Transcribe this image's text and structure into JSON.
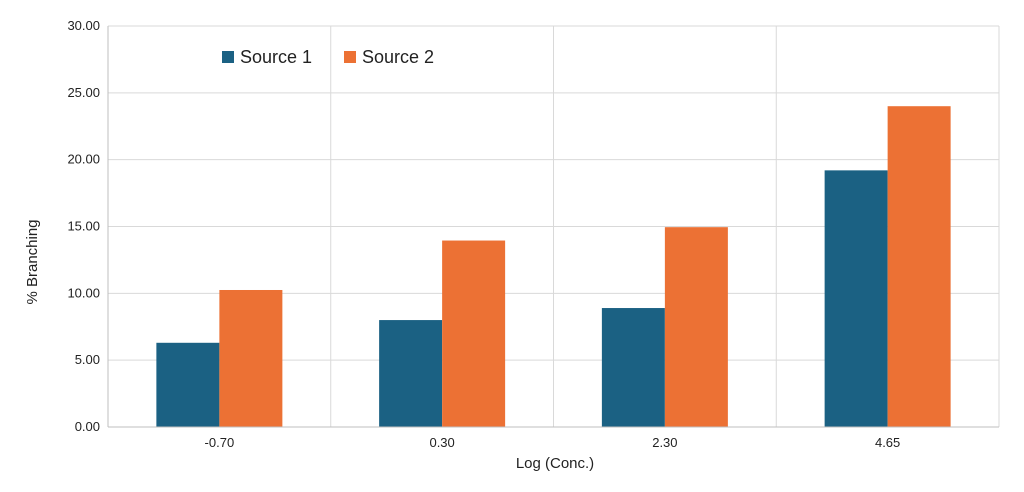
{
  "chart_data": {
    "type": "bar",
    "categories": [
      "-0.70",
      "0.30",
      "2.30",
      "4.65"
    ],
    "series": [
      {
        "name": "Source 1",
        "values": [
          6.3,
          8.0,
          8.9,
          19.2
        ],
        "color": "#1b6183"
      },
      {
        "name": "Source 2",
        "values": [
          10.25,
          13.95,
          14.95,
          24.0
        ],
        "color": "#ec7134"
      }
    ],
    "xlabel": "Log (Conc.)",
    "ylabel": "% Branching",
    "ylim": [
      0,
      30
    ],
    "yticks": [
      "0.00",
      "5.00",
      "10.00",
      "15.00",
      "20.00",
      "25.00",
      "30.00"
    ],
    "grid": true,
    "legend_position": "top-left"
  }
}
